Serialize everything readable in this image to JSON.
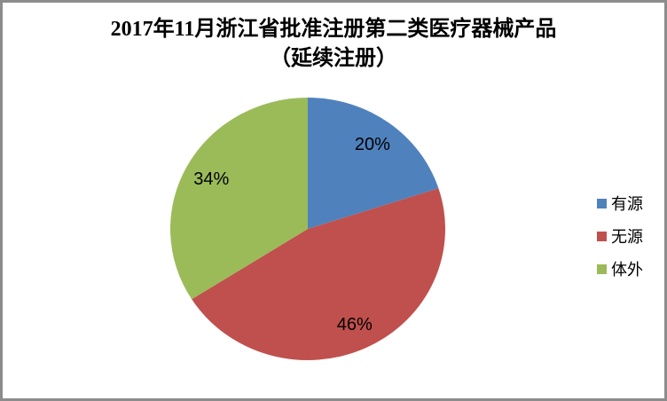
{
  "chart": {
    "title_line1": "2017年11月浙江省批准注册第二类医疗器械产品",
    "title_line2": "（延续注册）"
  },
  "chart_data": {
    "type": "pie",
    "title": "2017年11月浙江省批准注册第二类医疗器械产品（延续注册）",
    "start_angle_deg": 0,
    "direction": "clockwise",
    "legend_position": "right",
    "grid": false,
    "slices": [
      {
        "name": "有源",
        "value": 20,
        "label": "20%",
        "color": "#4F81BD"
      },
      {
        "name": "无源",
        "value": 46,
        "label": "46%",
        "color": "#C0504D"
      },
      {
        "name": "体外",
        "value": 34,
        "label": "34%",
        "color": "#9BBB59"
      }
    ],
    "label_color": "#000000",
    "frame_border_color": "#8C8C8C",
    "background_color": "#FFFFFF"
  }
}
